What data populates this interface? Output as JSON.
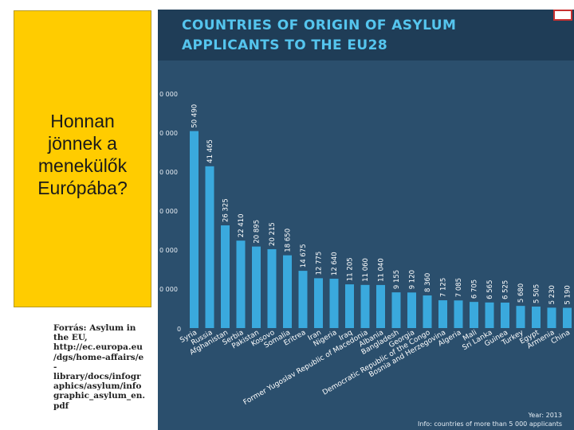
{
  "slide": {
    "title_lines": [
      "Honnan",
      "jönnek a",
      "menekülők",
      "Európába?"
    ],
    "source_lines": [
      "Forrás: Asylum in",
      "the EU,",
      "http://ec.europa.eu",
      "/dgs/home-affairs/e",
      "-",
      "library/docs/infogr",
      "aphics/asylum/info",
      "graphic_asylum_en.",
      "pdf"
    ]
  },
  "colors": {
    "bar": "#3aa9dd",
    "background": "#2b4f6d",
    "header": "#1f3d57",
    "title": "#55c5ee",
    "panel": "#ffcc00"
  },
  "chart_data": {
    "type": "bar",
    "title": "COUNTRIES OF ORIGIN OF ASYLUM APPLICANTS TO THE EU28",
    "title_lines": [
      "COUNTRIES OF ORIGIN OF ASYLUM",
      "APPLICANTS TO THE EU28"
    ],
    "ylim": [
      0,
      60000
    ],
    "y_ticks": [
      {
        "value": 10000,
        "label": "0 000"
      },
      {
        "value": 20000,
        "label": "0 000"
      },
      {
        "value": 30000,
        "label": "0 000"
      },
      {
        "value": 40000,
        "label": "0 000"
      },
      {
        "value": 50000,
        "label": "0 000"
      },
      {
        "value": 60000,
        "label": "0 000"
      }
    ],
    "zero_label": "0",
    "categories": [
      "Syria",
      "Russia",
      "Afghanistan",
      "Serbia",
      "Pakistan",
      "Kosovo",
      "Somalia",
      "Eritrea",
      "Iran",
      "Nigeria",
      "Iraq",
      "Former Yugoslav Republic of Macedonia",
      "Albania",
      "Bangladesh",
      "Georgia",
      "Democratic Republic of the Congo",
      "Bosnia and Herzegovina",
      "Algeria",
      "Mali",
      "Sri Lanka",
      "Guinea",
      "Turkey",
      "Egypt",
      "Armenia",
      "China"
    ],
    "values": [
      50490,
      41465,
      26325,
      22410,
      20895,
      20215,
      18650,
      14675,
      12775,
      12640,
      11205,
      11060,
      11040,
      9155,
      9120,
      8360,
      7125,
      7085,
      6705,
      6565,
      6525,
      5680,
      5505,
      5230,
      5190
    ],
    "value_labels": [
      "50 490",
      "41 465",
      "26 325",
      "22 410",
      "20 895",
      "20 215",
      "18 650",
      "14 675",
      "12 775",
      "12 640",
      "11 205",
      "11 060",
      "11 040",
      "9 155",
      "9 120",
      "8 360",
      "7 125",
      "7 085",
      "6 705",
      "6 565",
      "6 525",
      "5 680",
      "5 505",
      "5 230",
      "5 190"
    ],
    "footer": {
      "year": "Year: 2013",
      "note": "Info: countries of more than 5 000 applicants"
    }
  }
}
